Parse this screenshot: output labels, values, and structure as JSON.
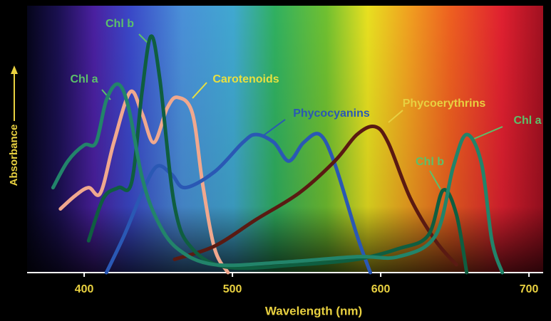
{
  "chart_data": {
    "type": "line",
    "xlabel": "Wavelength (nm)",
    "ylabel": "Absorbance",
    "xlim": [
      361.5,
      708.6
    ],
    "xticks": [
      400,
      500,
      600,
      700
    ],
    "ylim": [
      0,
      100
    ],
    "series": [
      {
        "name": "Chl a",
        "color": "#22846a",
        "label_color": "#5cc06a",
        "x": [
          379,
          389,
          400,
          408,
          415,
          423,
          430,
          439,
          449,
          463,
          488,
          536,
          584,
          612,
          637,
          649,
          658,
          668,
          675,
          682
        ],
        "values": [
          32,
          42,
          48,
          49,
          65,
          71,
          62,
          36,
          20,
          9,
          3,
          4,
          6,
          6,
          14,
          40,
          52,
          41,
          12,
          0
        ]
      },
      {
        "name": "Chl b",
        "color": "#0f5e40",
        "label_color": "#5cc06a",
        "x": [
          403,
          413,
          423,
          432,
          439,
          445,
          451,
          461,
          473,
          497,
          545,
          584,
          612,
          632,
          642,
          651,
          658
        ],
        "values": [
          12,
          28,
          32,
          34,
          68,
          89,
          73,
          25,
          9,
          2,
          3,
          5,
          9,
          14,
          31,
          22,
          0
        ]
      },
      {
        "name": "Carotenoids",
        "color": "#f0a88e",
        "label_color": "#e8e040",
        "x": [
          384,
          394,
          403,
          411,
          420,
          431,
          439,
          447,
          456,
          463,
          473,
          480,
          488,
          497
        ],
        "values": [
          24,
          29,
          32,
          30,
          49,
          68,
          60,
          49,
          62,
          66,
          60,
          33,
          9,
          0
        ]
      },
      {
        "name": "Phycocyanins",
        "color": "#2a58b4",
        "label_color": "#2a58b4",
        "x": [
          415,
          427,
          439,
          449,
          459,
          468,
          488,
          507,
          516,
          528,
          538,
          548,
          559,
          569,
          584,
          593
        ],
        "values": [
          0,
          14,
          30,
          40,
          37,
          32,
          38,
          49,
          52,
          49,
          42,
          49,
          52,
          41,
          14,
          0
        ]
      },
      {
        "name": "Phycoerythrins",
        "color": "#5a1a12",
        "label_color": "#e8d040",
        "x": [
          461,
          488,
          516,
          545,
          569,
          584,
          596,
          605,
          620,
          637,
          651
        ],
        "values": [
          5,
          10,
          20,
          30,
          42,
          52,
          55,
          49,
          28,
          12,
          3
        ]
      }
    ]
  }
}
